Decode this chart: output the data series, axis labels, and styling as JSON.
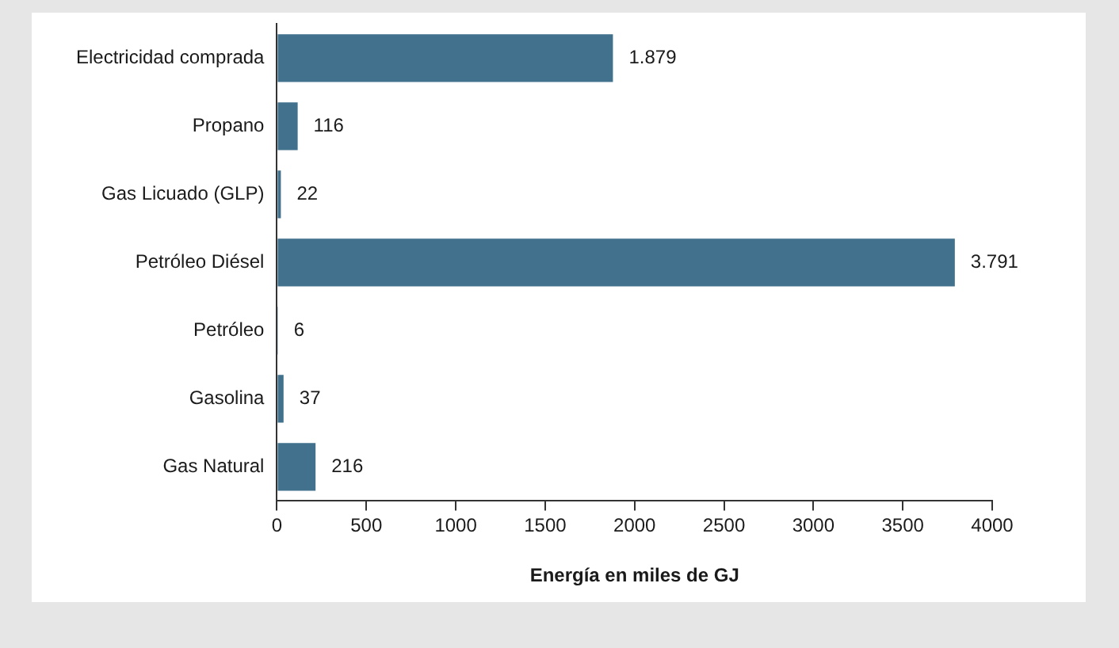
{
  "chart_data": {
    "type": "bar",
    "orientation": "horizontal",
    "xlabel": "Energía en miles de GJ",
    "categories": [
      "Electricidad comprada",
      "Propano",
      "Gas Licuado (GLP)",
      "Petróleo Diésel",
      "Petróleo",
      "Gasolina",
      "Gas Natural"
    ],
    "values": [
      1879,
      116,
      22,
      3791,
      6,
      37,
      216
    ],
    "value_labels": [
      "1.879",
      "116",
      "22",
      "3.791",
      "6",
      "37",
      "216"
    ],
    "color": "#41718c",
    "xlim": [
      0,
      4000
    ],
    "xticks": [
      0,
      500,
      1000,
      1500,
      2000,
      2500,
      3000,
      3500,
      4000
    ],
    "grid": false,
    "legend": false
  }
}
